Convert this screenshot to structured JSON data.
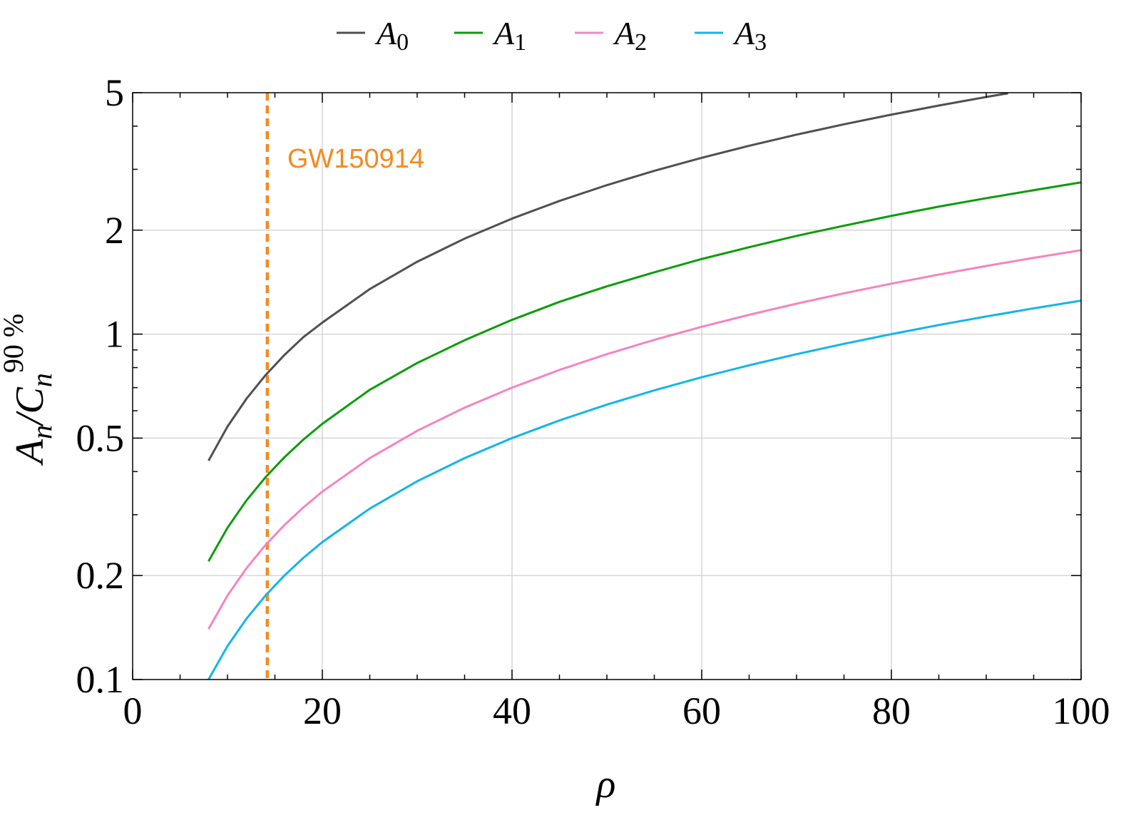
{
  "chart_data": {
    "type": "line",
    "title": "",
    "xlabel": "ρ",
    "ylabel": {
      "main": "A",
      "sub1": "n",
      "slash": "/C",
      "sub2": "n",
      "sup": "90 %"
    },
    "xlim": [
      0,
      100
    ],
    "ylim": [
      0.1,
      5
    ],
    "yscale": "log",
    "grid": true,
    "legend_position": "top",
    "x_ticks": [
      0,
      20,
      40,
      60,
      80,
      100
    ],
    "x_tick_labels": [
      "0",
      "20",
      "40",
      "60",
      "80",
      "100"
    ],
    "y_ticks": [
      0.1,
      0.2,
      0.5,
      1,
      2,
      5
    ],
    "y_tick_labels": [
      "0.1",
      "0.2",
      "0.5",
      "1",
      "2",
      "5"
    ],
    "series": [
      {
        "name": "A",
        "name_sub": "0",
        "color": "#505050",
        "x": [
          8,
          10,
          12,
          14,
          16,
          18,
          20,
          25,
          30,
          35,
          40,
          45,
          50,
          55,
          60,
          65,
          70,
          75,
          80,
          85,
          90,
          92.3
        ],
        "y": [
          0.43,
          0.54,
          0.65,
          0.76,
          0.87,
          0.98,
          1.08,
          1.35,
          1.62,
          1.89,
          2.16,
          2.43,
          2.7,
          2.97,
          3.24,
          3.51,
          3.78,
          4.05,
          4.32,
          4.59,
          4.86,
          4.98
        ]
      },
      {
        "name": "A",
        "name_sub": "1",
        "color": "#0a9d0a",
        "x": [
          8,
          10,
          12,
          14,
          16,
          18,
          20,
          25,
          30,
          35,
          40,
          45,
          50,
          55,
          60,
          65,
          70,
          75,
          80,
          85,
          90,
          95,
          100
        ],
        "y": [
          0.22,
          0.275,
          0.33,
          0.385,
          0.44,
          0.495,
          0.55,
          0.69,
          0.825,
          0.96,
          1.1,
          1.24,
          1.375,
          1.51,
          1.65,
          1.785,
          1.925,
          2.06,
          2.2,
          2.34,
          2.475,
          2.61,
          2.75
        ]
      },
      {
        "name": "A",
        "name_sub": "2",
        "color": "#f584c0",
        "x": [
          8,
          10,
          12,
          14,
          16,
          18,
          20,
          25,
          30,
          35,
          40,
          45,
          50,
          55,
          60,
          65,
          70,
          75,
          80,
          85,
          90,
          95,
          100
        ],
        "y": [
          0.14,
          0.175,
          0.21,
          0.245,
          0.28,
          0.315,
          0.35,
          0.4375,
          0.525,
          0.6125,
          0.7,
          0.7875,
          0.875,
          0.9625,
          1.05,
          1.1375,
          1.225,
          1.3125,
          1.4,
          1.4875,
          1.575,
          1.6625,
          1.75
        ]
      },
      {
        "name": "A",
        "name_sub": "3",
        "color": "#12b4ec",
        "x": [
          8,
          10,
          12,
          14,
          16,
          18,
          20,
          25,
          30,
          35,
          40,
          45,
          50,
          55,
          60,
          65,
          70,
          75,
          80,
          85,
          90,
          95,
          100
        ],
        "y": [
          0.1,
          0.125,
          0.15,
          0.175,
          0.2,
          0.225,
          0.25,
          0.3125,
          0.375,
          0.4375,
          0.5,
          0.5625,
          0.625,
          0.6875,
          0.75,
          0.8125,
          0.875,
          0.9375,
          1.0,
          1.0625,
          1.125,
          1.1875,
          1.25
        ]
      }
    ],
    "annotations": [
      {
        "type": "vline",
        "x": 14.2,
        "color": "#f58a1f",
        "style": "dashed",
        "label": "GW150914"
      }
    ]
  }
}
